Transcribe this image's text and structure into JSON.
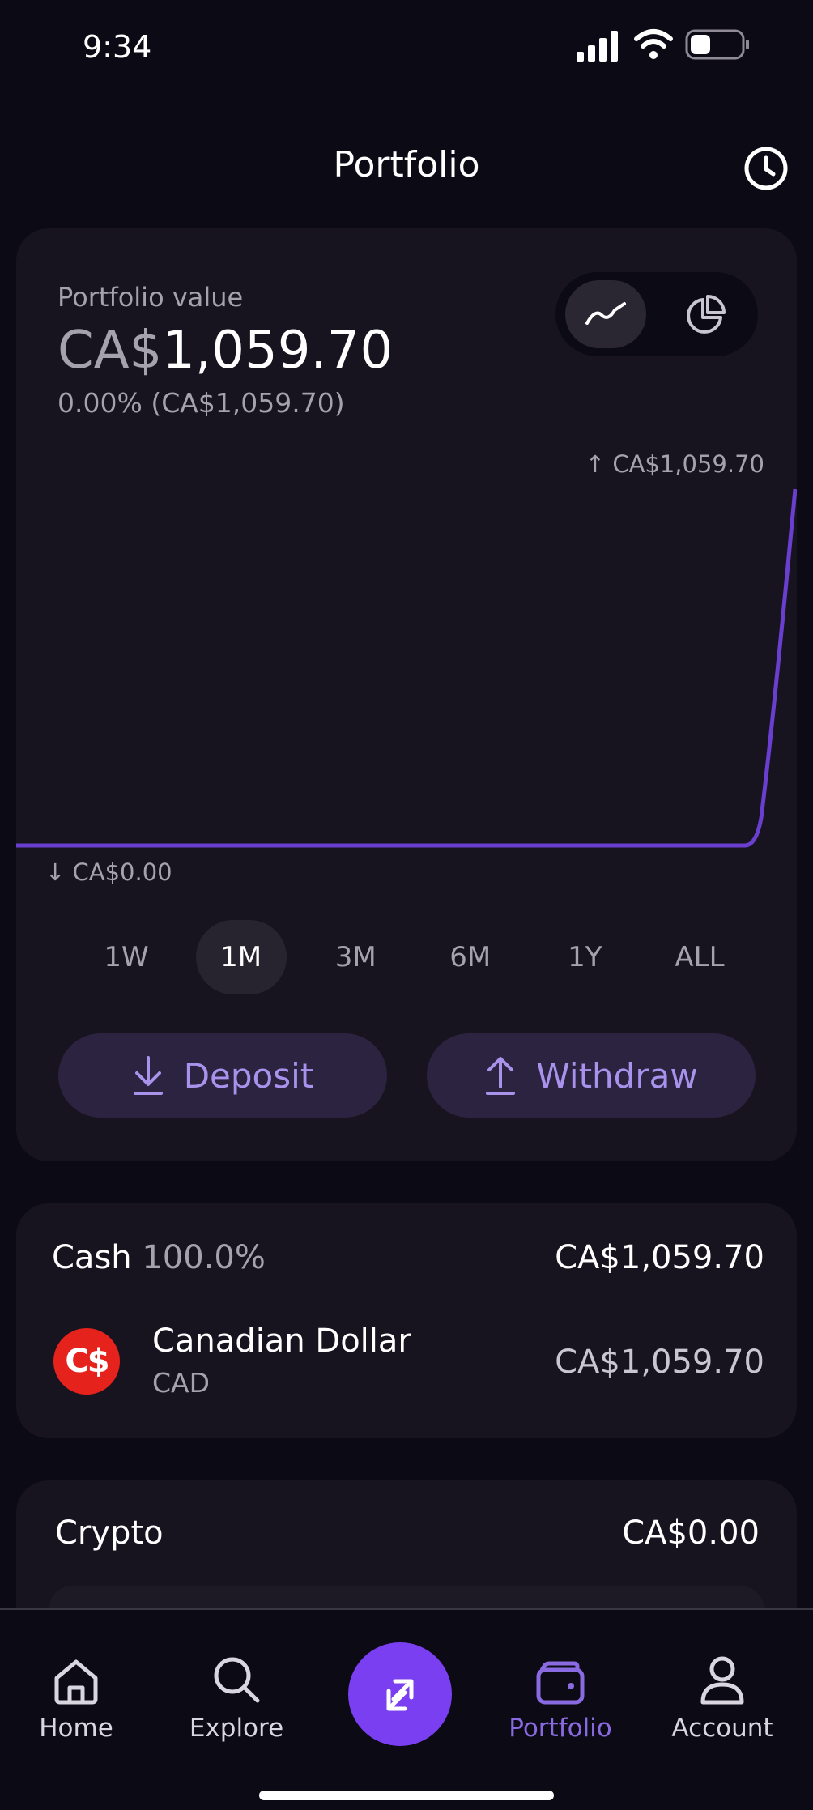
{
  "status_bar": {
    "time": "9:34"
  },
  "header": {
    "title": "Portfolio"
  },
  "portfolio": {
    "label": "Portfolio value",
    "currency_prefix": "CA$",
    "amount": "1,059.70",
    "change": "0.00% (CA$1,059.70)",
    "chart_high": "↑ CA$1,059.70",
    "chart_low": "↓ CA$0.00",
    "periods": [
      "1W",
      "1M",
      "3M",
      "6M",
      "1Y",
      "ALL"
    ],
    "selected_period": "1M",
    "deposit_label": "Deposit",
    "withdraw_label": "Withdraw"
  },
  "cash": {
    "title": "Cash",
    "percent": "100.0%",
    "total": "CA$1,059.70",
    "items": [
      {
        "logo": "C$",
        "name": "Canadian Dollar",
        "code": "CAD",
        "value": "CA$1,059.70"
      }
    ]
  },
  "crypto": {
    "title": "Crypto",
    "total": "CA$0.00"
  },
  "tabs": [
    "Home",
    "Explore",
    "Portfolio",
    "Account"
  ],
  "active_tab": "Portfolio",
  "colors": {
    "accent": "#7b3ff2",
    "accent_text": "#a892ec",
    "background": "#0c0a15",
    "card": "#17141f"
  },
  "icons": [
    "history-icon",
    "line-chart-icon",
    "pie-chart-icon",
    "download-icon",
    "upload-icon",
    "home-icon",
    "search-icon",
    "swap-icon",
    "wallet-icon",
    "person-icon"
  ]
}
